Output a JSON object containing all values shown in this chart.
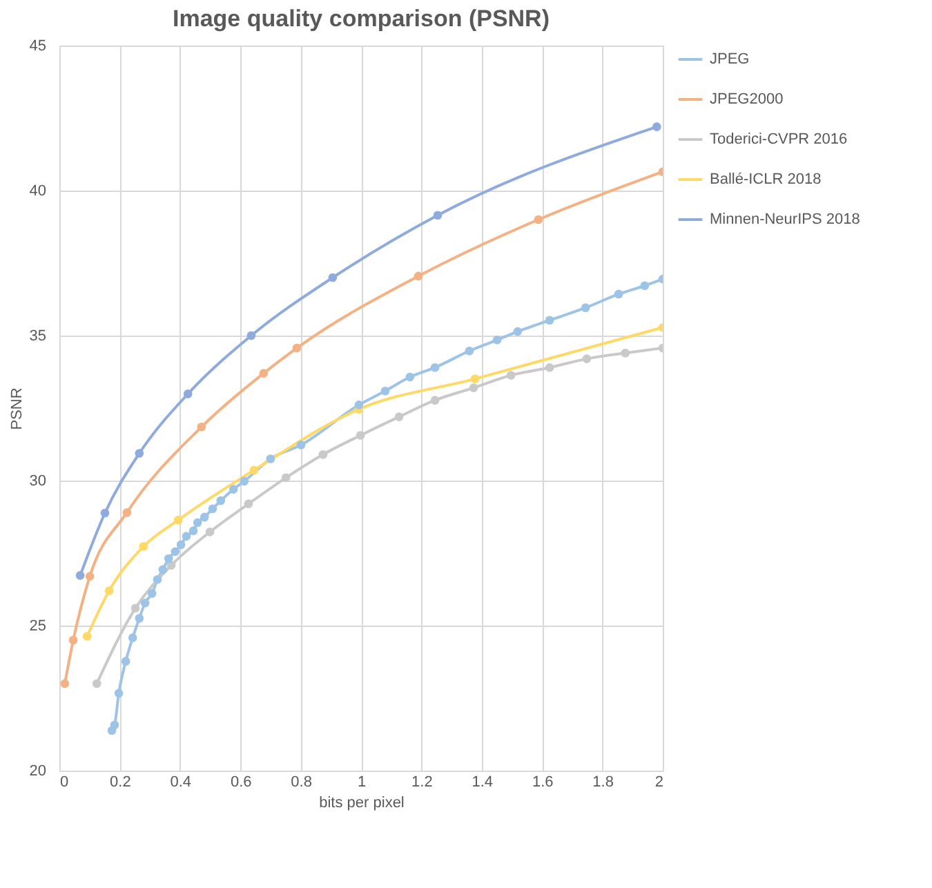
{
  "chart_data": {
    "type": "line",
    "title": "Image quality comparison (PSNR)",
    "xlabel": "bits per pixel",
    "ylabel": "PSNR",
    "xlim": [
      0,
      2
    ],
    "ylim": [
      20,
      45
    ],
    "xticks": [
      0,
      0.2,
      0.4,
      0.6,
      0.8,
      1,
      1.2,
      1.4,
      1.6,
      1.8,
      2
    ],
    "yticks": [
      20,
      25,
      30,
      35,
      40,
      45
    ],
    "grid": true,
    "legend": "right",
    "marker": "circle",
    "line_style": "solid",
    "series": [
      {
        "name": "JPEG",
        "color": "#9dc3e6",
        "x": [
          0.174,
          0.183,
          0.197,
          0.22,
          0.243,
          0.265,
          0.284,
          0.307,
          0.325,
          0.343,
          0.362,
          0.384,
          0.403,
          0.421,
          0.444,
          0.458,
          0.481,
          0.508,
          0.535,
          0.577,
          0.613,
          0.7,
          0.801,
          0.993,
          1.08,
          1.162,
          1.245,
          1.359,
          1.451,
          1.519,
          1.625,
          1.744,
          1.854,
          1.94,
          2.0
        ],
        "values": [
          21.38,
          21.57,
          22.67,
          23.77,
          24.58,
          25.25,
          25.78,
          26.11,
          26.59,
          26.93,
          27.31,
          27.55,
          27.79,
          28.08,
          28.27,
          28.55,
          28.74,
          29.03,
          29.31,
          29.7,
          29.98,
          30.75,
          31.23,
          32.61,
          33.09,
          33.57,
          33.9,
          34.47,
          34.85,
          35.14,
          35.53,
          35.96,
          36.43,
          36.72,
          36.95
        ]
      },
      {
        "name": "JPEG2000",
        "color": "#f4b183",
        "x": [
          0.018,
          0.046,
          0.101,
          0.224,
          0.471,
          0.677,
          0.787,
          1.19,
          1.588,
          2.0
        ],
        "values": [
          23.0,
          24.5,
          26.7,
          28.9,
          31.85,
          33.7,
          34.57,
          37.05,
          39.0,
          40.65
        ]
      },
      {
        "name": "Toderici-CVPR 2016",
        "color": "#c9c9c9",
        "x": [
          0.124,
          0.252,
          0.371,
          0.499,
          0.627,
          0.751,
          0.874,
          0.998,
          1.126,
          1.245,
          1.373,
          1.497,
          1.625,
          1.748,
          1.876,
          2.0
        ],
        "values": [
          23.0,
          25.6,
          27.08,
          28.23,
          29.2,
          30.1,
          30.9,
          31.56,
          32.2,
          32.77,
          33.2,
          33.63,
          33.9,
          34.2,
          34.4,
          34.57
        ]
      },
      {
        "name": "Ballé-ICLR 2018",
        "color": "#ffd966",
        "x": [
          0.092,
          0.165,
          0.279,
          0.394,
          0.645,
          0.993,
          1.378,
          2.0
        ],
        "values": [
          24.63,
          26.2,
          27.73,
          28.64,
          30.36,
          32.46,
          33.51,
          35.28
        ]
      },
      {
        "name": "Minnen-NeurIPS 2018",
        "color": "#8faadc",
        "x": [
          0.069,
          0.151,
          0.265,
          0.426,
          0.636,
          0.906,
          1.254,
          1.98
        ],
        "values": [
          26.73,
          28.88,
          30.94,
          32.99,
          35.0,
          37.0,
          39.15,
          42.2
        ]
      }
    ]
  }
}
